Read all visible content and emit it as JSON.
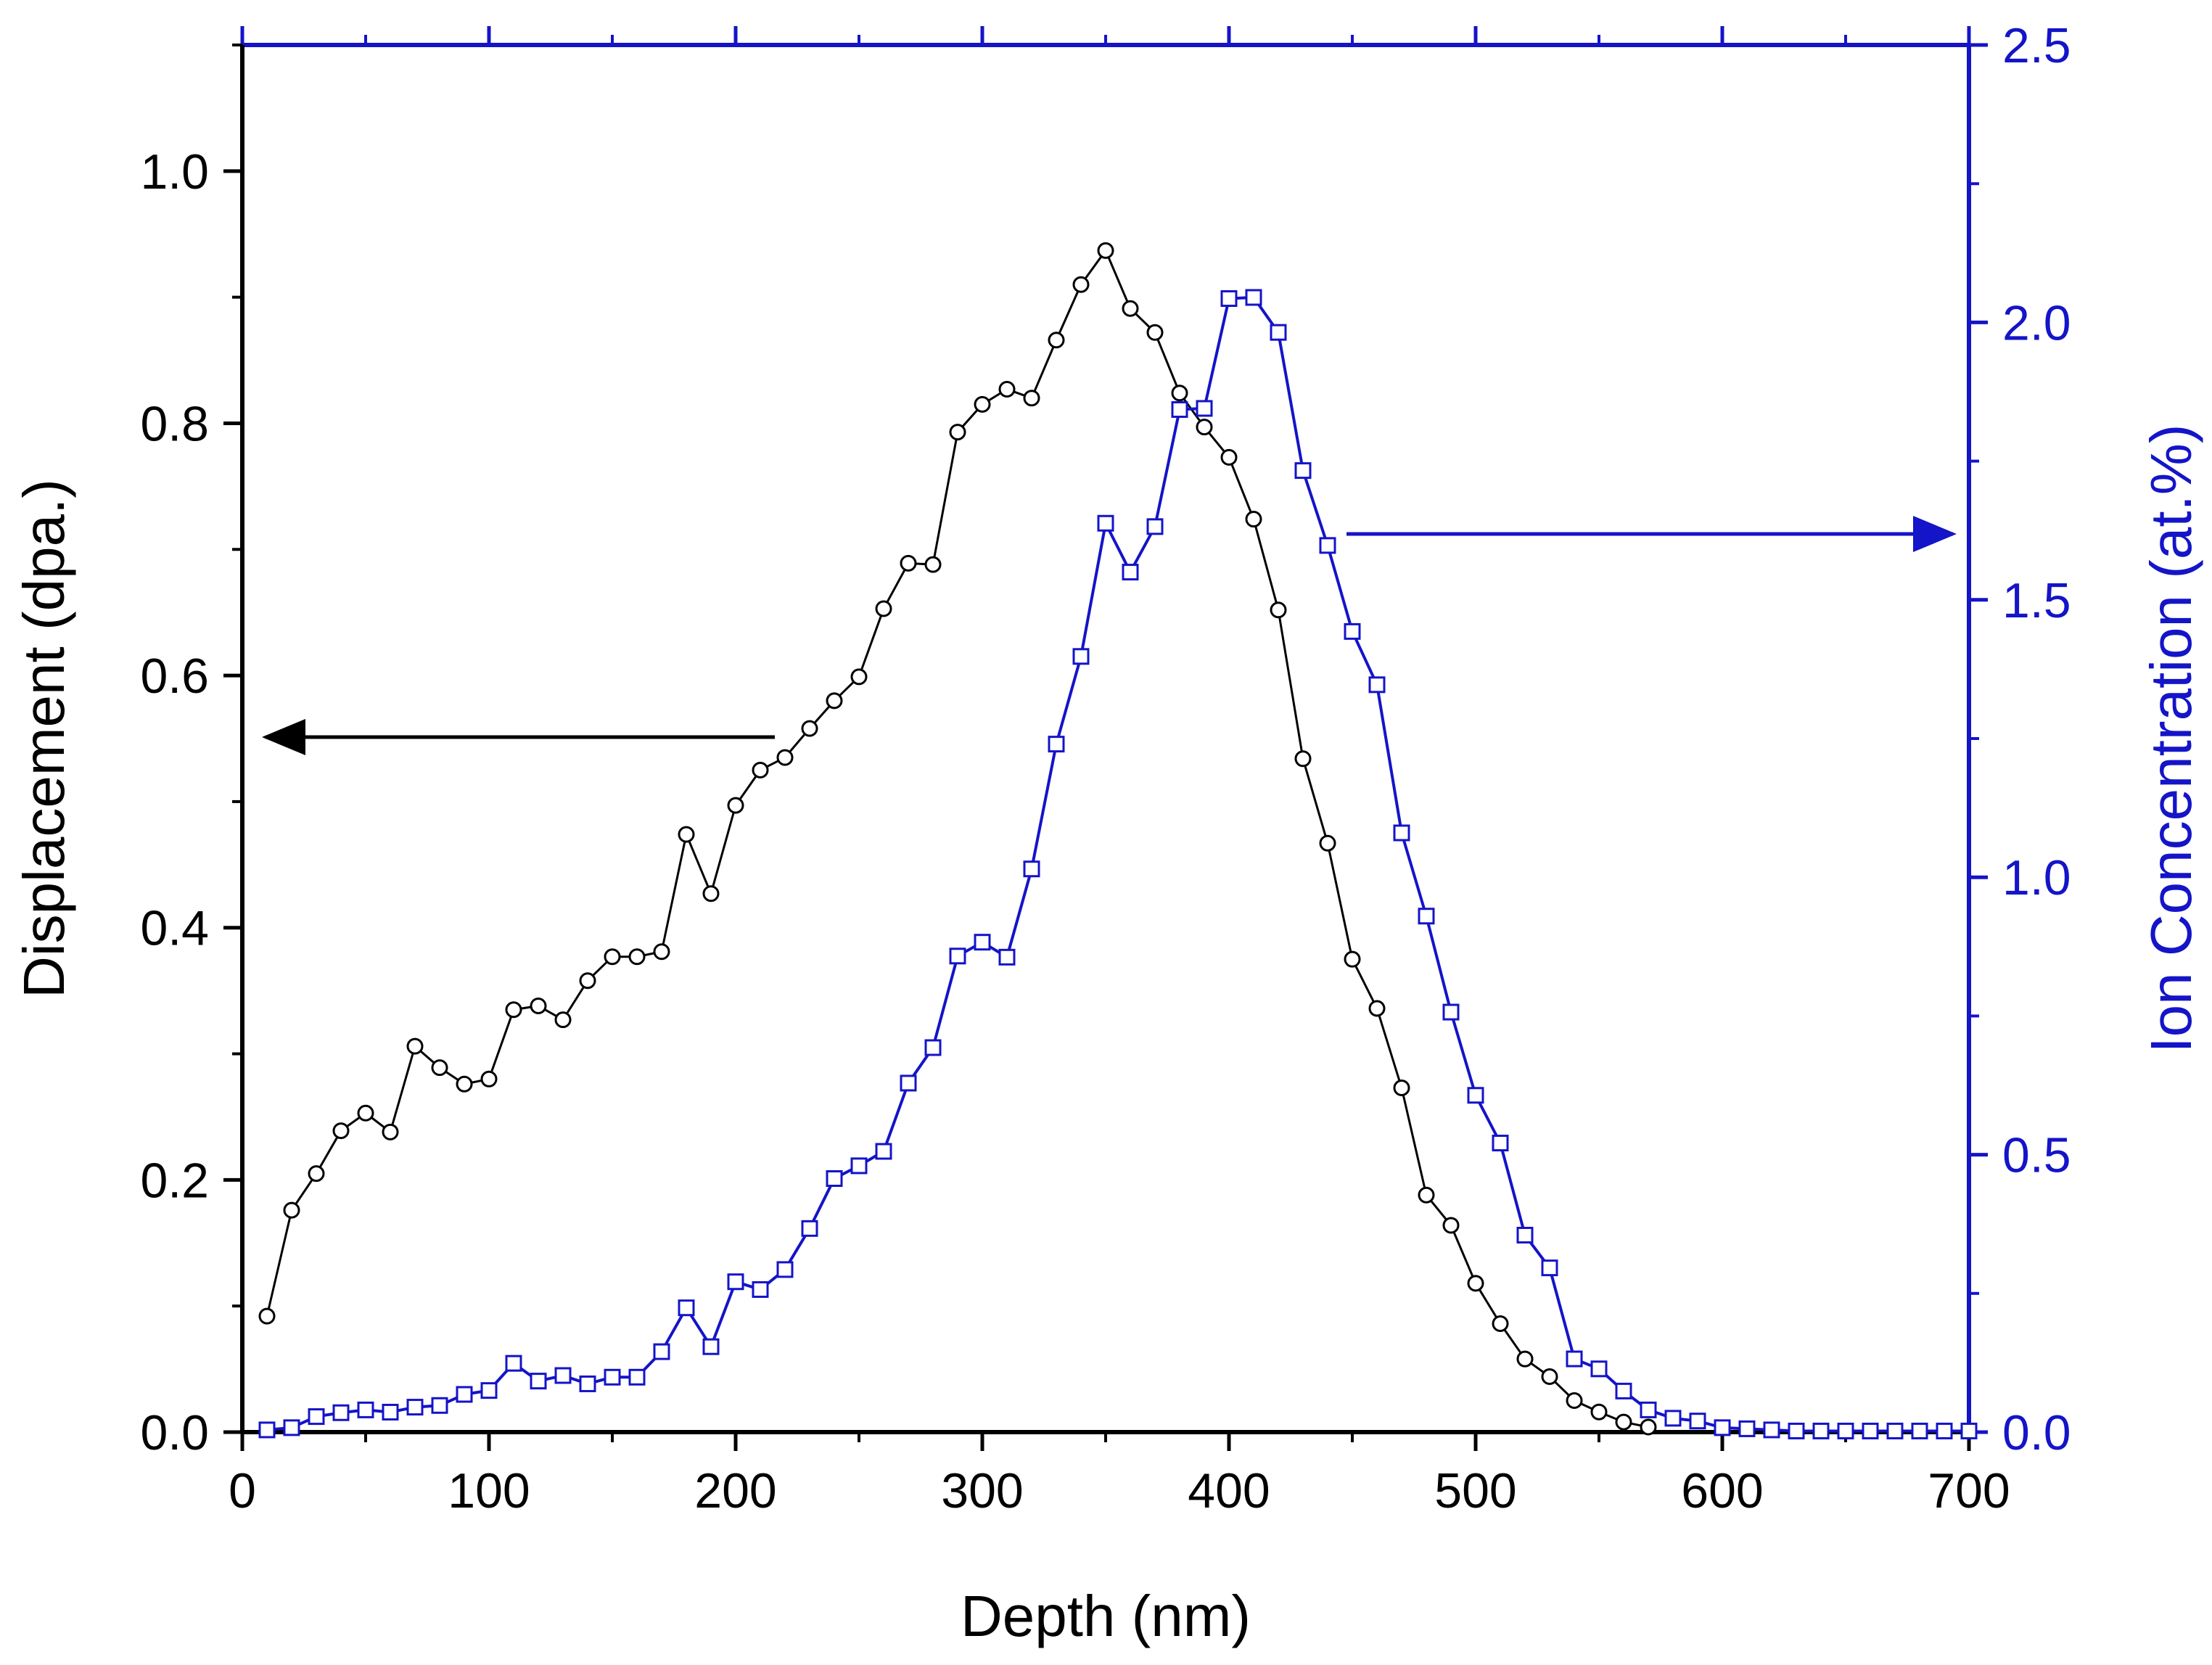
{
  "colors": {
    "left": "#000000",
    "right": "#1414c8"
  },
  "chart_data": {
    "type": "line",
    "xlabel": "Depth (nm)",
    "ylabel": "Displacement (dpa.)",
    "y2label": "Ion Concentration (at.%)",
    "xlim": [
      0,
      700
    ],
    "ylim": [
      0,
      1.1
    ],
    "y2lim": [
      0,
      2.5
    ],
    "x_ticks": [
      "0",
      "100",
      "200",
      "300",
      "400",
      "500",
      "600",
      "700"
    ],
    "y_ticks": [
      "0.0",
      "0.2",
      "0.4",
      "0.6",
      "0.8",
      "1.0"
    ],
    "y2_ticks": [
      "0.0",
      "0.5",
      "1.0",
      "1.5",
      "2.0",
      "2.5"
    ],
    "grid": false,
    "series": [
      {
        "name": "Displacement",
        "axis": "left",
        "marker": "circle",
        "x": [
          10,
          20,
          30,
          40,
          50,
          60,
          70,
          80,
          90,
          100,
          110,
          120,
          130,
          140,
          150,
          160,
          170,
          180,
          190,
          200,
          210,
          220,
          230,
          240,
          250,
          260,
          270,
          280,
          290,
          300,
          310,
          320,
          330,
          340,
          350,
          360,
          370,
          380,
          390,
          400,
          410,
          420,
          430,
          440,
          450,
          460,
          470,
          480,
          490,
          500,
          510,
          520,
          530,
          540,
          550,
          560,
          570
        ],
        "values": [
          0.092,
          0.176,
          0.205,
          0.239,
          0.253,
          0.238,
          0.306,
          0.289,
          0.276,
          0.28,
          0.335,
          0.338,
          0.327,
          0.358,
          0.377,
          0.377,
          0.381,
          0.474,
          0.427,
          0.497,
          0.525,
          0.535,
          0.558,
          0.58,
          0.599,
          0.653,
          0.689,
          0.688,
          0.793,
          0.815,
          0.827,
          0.82,
          0.866,
          0.91,
          0.937,
          0.891,
          0.872,
          0.824,
          0.797,
          0.773,
          0.724,
          0.652,
          0.534,
          0.467,
          0.375,
          0.336,
          0.273,
          0.188,
          0.164,
          0.118,
          0.086,
          0.058,
          0.044,
          0.025,
          0.016,
          0.008,
          0.004
        ]
      },
      {
        "name": "Ion Concentration",
        "axis": "right",
        "marker": "square",
        "x": [
          10,
          20,
          30,
          40,
          50,
          60,
          70,
          80,
          90,
          100,
          110,
          120,
          130,
          140,
          150,
          160,
          170,
          180,
          190,
          200,
          210,
          220,
          230,
          240,
          250,
          260,
          270,
          280,
          290,
          300,
          310,
          320,
          330,
          340,
          350,
          360,
          370,
          380,
          390,
          400,
          410,
          420,
          430,
          440,
          450,
          460,
          470,
          480,
          490,
          500,
          510,
          520,
          530,
          540,
          550,
          560,
          570,
          580,
          590,
          600,
          610,
          620,
          630,
          640,
          650,
          660,
          670,
          680,
          690,
          700
        ],
        "values": [
          0.004,
          0.008,
          0.028,
          0.035,
          0.04,
          0.036,
          0.045,
          0.048,
          0.068,
          0.075,
          0.124,
          0.092,
          0.102,
          0.087,
          0.099,
          0.099,
          0.145,
          0.224,
          0.154,
          0.271,
          0.257,
          0.293,
          0.367,
          0.457,
          0.48,
          0.506,
          0.629,
          0.693,
          0.858,
          0.883,
          0.856,
          1.015,
          1.24,
          1.398,
          1.638,
          1.55,
          1.632,
          1.843,
          1.845,
          2.043,
          2.045,
          1.982,
          1.733,
          1.598,
          1.443,
          1.347,
          1.08,
          0.93,
          0.757,
          0.607,
          0.521,
          0.355,
          0.296,
          0.132,
          0.114,
          0.074,
          0.04,
          0.025,
          0.02,
          0.008,
          0.006,
          0.004,
          0.002,
          0.002,
          0.002,
          0.002,
          0.002,
          0.002,
          0.002,
          0.002
        ]
      }
    ]
  }
}
